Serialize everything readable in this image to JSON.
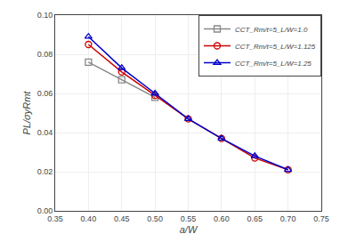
{
  "chart_data": {
    "type": "line",
    "xlabel": "a/W",
    "ylabel": "PL/σyRmt",
    "series": [
      {
        "name": "CCT_Rm/t=5_L/W=1.0",
        "color": "#888888",
        "marker": "square",
        "line_style": "solid",
        "x": [
          0.4,
          0.45,
          0.5
        ],
        "values": [
          0.076,
          0.067,
          0.058
        ]
      },
      {
        "name": "CCT_Rm/t=5_L/W=1.125",
        "color": "#cc0000",
        "marker": "circle",
        "line_style": "solid",
        "x": [
          0.4,
          0.45,
          0.5,
          0.55,
          0.6,
          0.65,
          0.7
        ],
        "values": [
          0.085,
          0.071,
          0.059,
          0.047,
          0.037,
          0.027,
          0.021
        ]
      },
      {
        "name": "CCT_Rm/t=5_L/W=1.25",
        "color": "#0000cc",
        "marker": "triangle-up",
        "line_style": "solid",
        "x": [
          0.4,
          0.45,
          0.5,
          0.55,
          0.6,
          0.65,
          0.7
        ],
        "values": [
          0.089,
          0.073,
          0.06,
          0.047,
          0.037,
          0.028,
          0.021
        ]
      }
    ],
    "xlim": [
      0.35,
      0.75
    ],
    "ylim": [
      0.0,
      0.1
    ],
    "xticks": [
      0.35,
      {
        "value": 0.4,
        "label": "0.40"
      },
      0.45,
      {
        "value": 0.5,
        "label": "0.50"
      },
      0.55,
      {
        "value": 0.6,
        "label": "0.60"
      },
      0.65,
      {
        "value": 0.7,
        "label": "0.70"
      },
      0.75
    ],
    "yticks": [
      {
        "value": 0,
        "label": "0.00"
      },
      0.02,
      0.04,
      0.06,
      0.08,
      {
        "value": 0.1,
        "label": "0.10"
      }
    ],
    "grid": true,
    "legend": "upper right"
  }
}
